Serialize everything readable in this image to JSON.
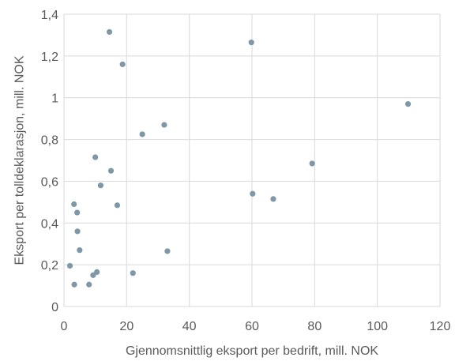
{
  "chart_data": {
    "type": "scatter",
    "title": "",
    "xlabel": "Gjennomsnittlig eksport per bedrift, mill. NOK",
    "ylabel": "Eksport per tolldeklarasjon, mill. NOK",
    "xlim": [
      0,
      120
    ],
    "ylim": [
      0,
      1.4
    ],
    "x_ticks": [
      0,
      20,
      40,
      60,
      80,
      100,
      120
    ],
    "x_tick_labels": [
      "0",
      "20",
      "40",
      "60",
      "80",
      "100",
      "120"
    ],
    "y_ticks": [
      0,
      0.2,
      0.4,
      0.6,
      0.8,
      1,
      1.2,
      1.4
    ],
    "y_tick_labels": [
      "0",
      "0,2",
      "0,4",
      "0,6",
      "0,8",
      "1",
      "1,2",
      "1,4"
    ],
    "grid": "major gridlines on both axes",
    "legend": "none",
    "marker_color": "#7f98a8",
    "grid_color": "#d9d9d9",
    "text_color": "#595959",
    "points": [
      {
        "x": 1.9,
        "y": 0.195
      },
      {
        "x": 3.2,
        "y": 0.49
      },
      {
        "x": 3.3,
        "y": 0.105
      },
      {
        "x": 4.2,
        "y": 0.45
      },
      {
        "x": 4.3,
        "y": 0.36
      },
      {
        "x": 5.0,
        "y": 0.27
      },
      {
        "x": 8.0,
        "y": 0.105
      },
      {
        "x": 9.3,
        "y": 0.15
      },
      {
        "x": 10.0,
        "y": 0.715
      },
      {
        "x": 10.5,
        "y": 0.165
      },
      {
        "x": 11.7,
        "y": 0.58
      },
      {
        "x": 14.5,
        "y": 1.315
      },
      {
        "x": 15.0,
        "y": 0.65
      },
      {
        "x": 17.0,
        "y": 0.485
      },
      {
        "x": 18.7,
        "y": 1.16
      },
      {
        "x": 22.0,
        "y": 0.16
      },
      {
        "x": 25.0,
        "y": 0.825
      },
      {
        "x": 32.0,
        "y": 0.87
      },
      {
        "x": 33.0,
        "y": 0.265
      },
      {
        "x": 59.8,
        "y": 1.265
      },
      {
        "x": 60.2,
        "y": 0.54
      },
      {
        "x": 66.8,
        "y": 0.515
      },
      {
        "x": 79.2,
        "y": 0.685
      },
      {
        "x": 109.8,
        "y": 0.97
      }
    ]
  }
}
